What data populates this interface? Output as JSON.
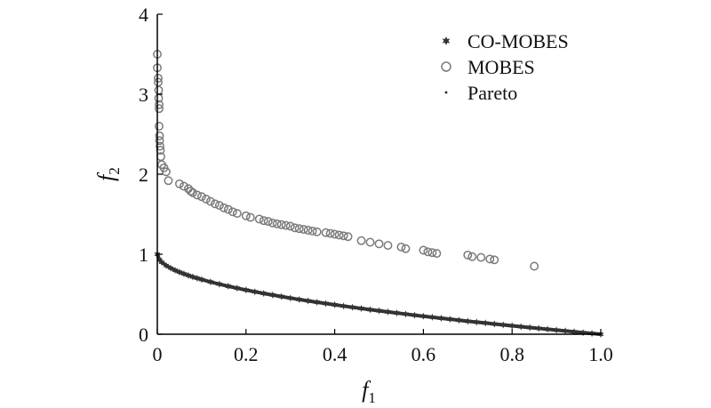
{
  "chart_data": {
    "type": "scatter",
    "title": "",
    "xlabel": {
      "main": "f",
      "sub": "1"
    },
    "ylabel": {
      "main": "f",
      "sub": "2"
    },
    "xlim": [
      0,
      1.0
    ],
    "ylim": [
      0,
      4
    ],
    "x_ticks": [
      "0",
      "0.2",
      "0.4",
      "0.6",
      "0.8",
      "1.0"
    ],
    "y_ticks": [
      "0",
      "1",
      "2",
      "3",
      "4"
    ],
    "grid": false,
    "legend_position": "top-right",
    "colors": {
      "co_mobes": "#333333",
      "mobes": "#7a7a7a",
      "pareto": "#222222",
      "axis": "#000000"
    },
    "series": [
      {
        "name": "CO-MOBES",
        "marker": "filled-star",
        "points": [
          [
            0,
            1
          ],
          [
            0.005,
            0.929
          ],
          [
            0.01,
            0.9
          ],
          [
            0.02,
            0.859
          ],
          [
            0.03,
            0.827
          ],
          [
            0.04,
            0.8
          ],
          [
            0.05,
            0.776
          ],
          [
            0.06,
            0.755
          ],
          [
            0.07,
            0.735
          ],
          [
            0.08,
            0.717
          ],
          [
            0.09,
            0.7
          ],
          [
            0.1,
            0.684
          ],
          [
            0.12,
            0.654
          ],
          [
            0.14,
            0.626
          ],
          [
            0.16,
            0.6
          ],
          [
            0.18,
            0.576
          ],
          [
            0.2,
            0.553
          ],
          [
            0.22,
            0.531
          ],
          [
            0.24,
            0.51
          ],
          [
            0.26,
            0.49
          ],
          [
            0.28,
            0.471
          ],
          [
            0.3,
            0.452
          ],
          [
            0.32,
            0.434
          ],
          [
            0.34,
            0.417
          ],
          [
            0.36,
            0.4
          ],
          [
            0.38,
            0.384
          ],
          [
            0.4,
            0.368
          ],
          [
            0.42,
            0.352
          ],
          [
            0.44,
            0.337
          ],
          [
            0.46,
            0.322
          ],
          [
            0.48,
            0.307
          ],
          [
            0.5,
            0.293
          ],
          [
            0.52,
            0.279
          ],
          [
            0.54,
            0.265
          ],
          [
            0.56,
            0.252
          ],
          [
            0.58,
            0.238
          ],
          [
            0.6,
            0.225
          ],
          [
            0.62,
            0.213
          ],
          [
            0.64,
            0.2
          ],
          [
            0.66,
            0.188
          ],
          [
            0.68,
            0.175
          ],
          [
            0.7,
            0.163
          ],
          [
            0.72,
            0.151
          ],
          [
            0.74,
            0.14
          ],
          [
            0.76,
            0.128
          ],
          [
            0.78,
            0.117
          ],
          [
            0.8,
            0.106
          ],
          [
            0.82,
            0.094
          ],
          [
            0.84,
            0.083
          ],
          [
            0.86,
            0.073
          ],
          [
            0.88,
            0.062
          ],
          [
            0.9,
            0.051
          ],
          [
            0.92,
            0.041
          ],
          [
            0.94,
            0.03
          ],
          [
            0.96,
            0.02
          ],
          [
            0.98,
            0.01
          ],
          [
            1.0,
            0
          ]
        ]
      },
      {
        "name": "MOBES",
        "marker": "open-circle",
        "points": [
          [
            0,
            3.5
          ],
          [
            0,
            3.33
          ],
          [
            0.002,
            3.2
          ],
          [
            0.002,
            3.15
          ],
          [
            0.003,
            3.05
          ],
          [
            0.003,
            2.95
          ],
          [
            0.004,
            2.87
          ],
          [
            0.004,
            2.82
          ],
          [
            0.004,
            2.6
          ],
          [
            0.005,
            2.48
          ],
          [
            0.005,
            2.42
          ],
          [
            0.006,
            2.35
          ],
          [
            0.007,
            2.3
          ],
          [
            0.008,
            2.22
          ],
          [
            0.01,
            2.12
          ],
          [
            0.015,
            2.08
          ],
          [
            0.02,
            2.03
          ],
          [
            0.025,
            1.92
          ],
          [
            0.05,
            1.88
          ],
          [
            0.06,
            1.85
          ],
          [
            0.07,
            1.82
          ],
          [
            0.075,
            1.79
          ],
          [
            0.08,
            1.77
          ],
          [
            0.09,
            1.74
          ],
          [
            0.1,
            1.72
          ],
          [
            0.11,
            1.69
          ],
          [
            0.12,
            1.66
          ],
          [
            0.13,
            1.63
          ],
          [
            0.14,
            1.61
          ],
          [
            0.15,
            1.58
          ],
          [
            0.16,
            1.56
          ],
          [
            0.17,
            1.53
          ],
          [
            0.18,
            1.51
          ],
          [
            0.2,
            1.48
          ],
          [
            0.21,
            1.46
          ],
          [
            0.23,
            1.44
          ],
          [
            0.24,
            1.42
          ],
          [
            0.25,
            1.41
          ],
          [
            0.26,
            1.39
          ],
          [
            0.27,
            1.38
          ],
          [
            0.28,
            1.37
          ],
          [
            0.29,
            1.36
          ],
          [
            0.3,
            1.35
          ],
          [
            0.31,
            1.33
          ],
          [
            0.32,
            1.32
          ],
          [
            0.33,
            1.31
          ],
          [
            0.34,
            1.3
          ],
          [
            0.35,
            1.29
          ],
          [
            0.36,
            1.28
          ],
          [
            0.38,
            1.27
          ],
          [
            0.39,
            1.26
          ],
          [
            0.4,
            1.25
          ],
          [
            0.41,
            1.24
          ],
          [
            0.42,
            1.23
          ],
          [
            0.43,
            1.22
          ],
          [
            0.46,
            1.17
          ],
          [
            0.48,
            1.15
          ],
          [
            0.5,
            1.13
          ],
          [
            0.52,
            1.11
          ],
          [
            0.55,
            1.09
          ],
          [
            0.56,
            1.07
          ],
          [
            0.6,
            1.05
          ],
          [
            0.61,
            1.03
          ],
          [
            0.62,
            1.02
          ],
          [
            0.63,
            1.01
          ],
          [
            0.7,
            0.99
          ],
          [
            0.71,
            0.97
          ],
          [
            0.73,
            0.96
          ],
          [
            0.75,
            0.94
          ],
          [
            0.76,
            0.93
          ],
          [
            0.85,
            0.85
          ]
        ]
      },
      {
        "name": "Pareto",
        "marker": "dot",
        "points": []
      }
    ]
  }
}
